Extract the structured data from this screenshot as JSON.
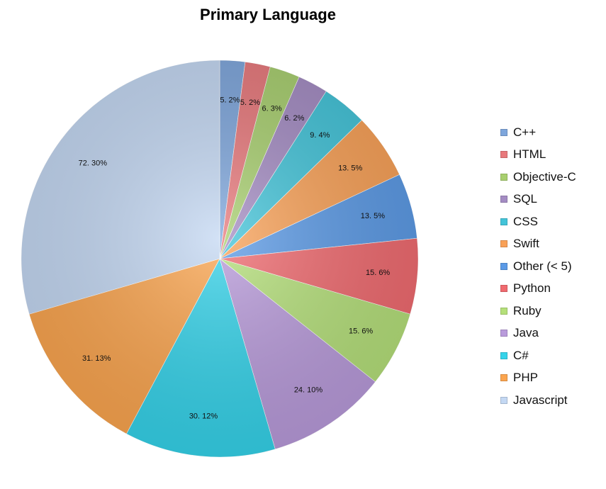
{
  "chart_data": {
    "type": "pie",
    "title": "Primary Language",
    "start": "12 o'clock, clockwise",
    "legend_position": "right",
    "slices": [
      {
        "name": "C++",
        "value": 5,
        "label": "5. 2%",
        "color": "#7ea6dc"
      },
      {
        "name": "HTML",
        "value": 5,
        "label": "5. 2%",
        "color": "#e8797c"
      },
      {
        "name": "Objective-C",
        "value": 6,
        "label": "6. 3%",
        "color": "#a8cf6f"
      },
      {
        "name": "SQL",
        "value": 6,
        "label": "6. 2%",
        "color": "#a48cc3"
      },
      {
        "name": "CSS",
        "value": 9,
        "label": "9. 4%",
        "color": "#43c4d9"
      },
      {
        "name": "Swift",
        "value": 13,
        "label": "13. 5%",
        "color": "#f9a157"
      },
      {
        "name": "Other (< 5)",
        "value": 13,
        "label": "13. 5%",
        "color": "#5b9ae6"
      },
      {
        "name": "Python",
        "value": 15,
        "label": "15. 6%",
        "color": "#f06a6f"
      },
      {
        "name": "Ruby",
        "value": 15,
        "label": "15. 6%",
        "color": "#b5e07a"
      },
      {
        "name": "Java",
        "value": 24,
        "label": "24. 10%",
        "color": "#b99bdb"
      },
      {
        "name": "C#",
        "value": 30,
        "label": "30. 12%",
        "color": "#35d3ea"
      },
      {
        "name": "PHP",
        "value": 31,
        "label": "31. 13%",
        "color": "#fba54f"
      },
      {
        "name": "Javascript",
        "value": 72,
        "label": "72. 30%",
        "color": "#c4d8f3"
      }
    ]
  }
}
